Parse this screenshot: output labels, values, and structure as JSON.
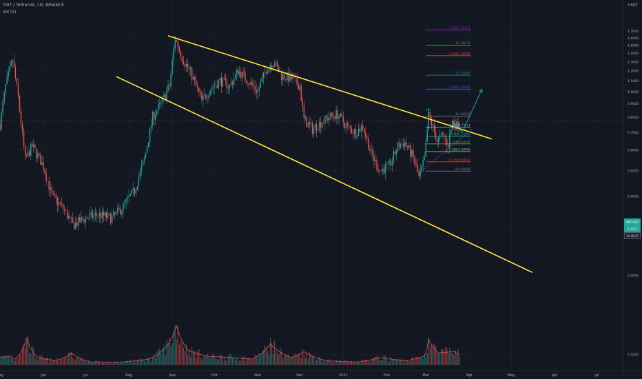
{
  "header": {
    "symbol": "TWT / TetherUS, 1D, BINANCE",
    "indicator": "Vol (5)"
  },
  "price_axis": {
    "currency": "USDT"
  },
  "badges": {
    "symbol_tag": "TWTUSDT",
    "last_price": "0.7712",
    "countdown": "10:48:25"
  },
  "colors": {
    "background": "#131722",
    "up": "#26a69a",
    "down": "#ef5350",
    "channel": "#ffeb3b",
    "forecast": "#26a69a",
    "volume_ma": "#ef5350"
  },
  "chart_data": {
    "type": "candlestick",
    "x_range": [
      "2021-05-01",
      "2022-07-20"
    ],
    "ylim": [
      0.1,
      1.8
    ],
    "y_scale": "log",
    "y_ticks": [
      0.1,
      0.2,
      0.3,
      0.4,
      0.5,
      0.6,
      0.7,
      0.8,
      0.9,
      1.0,
      1.1,
      1.2,
      1.3,
      1.4,
      1.5,
      1.6,
      1.7
    ],
    "y_tick_labels": [
      "0.1000",
      "0.2000",
      "0.3000",
      "0.4000",
      "0.5000",
      "0.6000",
      "0.7000",
      "0.8000",
      "0.9000",
      "1.0000",
      "1.1000",
      "1.2000",
      "1.3000",
      "1.4000",
      "1.5000",
      "1.6000",
      "1.7000"
    ],
    "x_ticks": [
      {
        "date": "2021-05-01",
        "label": "May"
      },
      {
        "date": "2021-06-01",
        "label": "Jun"
      },
      {
        "date": "2021-07-01",
        "label": "Jul"
      },
      {
        "date": "2021-08-01",
        "label": "Aug"
      },
      {
        "date": "2021-09-01",
        "label": "Sep"
      },
      {
        "date": "2021-10-01",
        "label": "Oct"
      },
      {
        "date": "2021-11-01",
        "label": "Nov"
      },
      {
        "date": "2021-12-01",
        "label": "Dec"
      },
      {
        "date": "2022-01-01",
        "label": "2022"
      },
      {
        "date": "2022-02-01",
        "label": "Feb"
      },
      {
        "date": "2022-03-01",
        "label": "Mar"
      },
      {
        "date": "2022-04-01",
        "label": "Apr"
      },
      {
        "date": "2022-05-01",
        "label": "May"
      },
      {
        "date": "2022-06-01",
        "label": "Jun"
      },
      {
        "date": "2022-07-01",
        "label": "Jul"
      }
    ],
    "price_path": [
      [
        "2021-05-01",
        0.75
      ],
      [
        "2021-05-05",
        1.05
      ],
      [
        "2021-05-10",
        1.32
      ],
      [
        "2021-05-14",
        0.95
      ],
      [
        "2021-05-19",
        0.55
      ],
      [
        "2021-05-24",
        0.62
      ],
      [
        "2021-06-01",
        0.52
      ],
      [
        "2021-06-07",
        0.4
      ],
      [
        "2021-06-15",
        0.36
      ],
      [
        "2021-06-22",
        0.31
      ],
      [
        "2021-07-01",
        0.33
      ],
      [
        "2021-07-10",
        0.34
      ],
      [
        "2021-07-20",
        0.33
      ],
      [
        "2021-07-27",
        0.36
      ],
      [
        "2021-08-05",
        0.42
      ],
      [
        "2021-08-12",
        0.55
      ],
      [
        "2021-08-18",
        0.8
      ],
      [
        "2021-08-24",
        0.9
      ],
      [
        "2021-08-30",
        1.05
      ],
      [
        "2021-09-03",
        1.6
      ],
      [
        "2021-09-08",
        1.35
      ],
      [
        "2021-09-15",
        1.15
      ],
      [
        "2021-09-22",
        0.92
      ],
      [
        "2021-09-28",
        1.02
      ],
      [
        "2021-10-05",
        1.1
      ],
      [
        "2021-10-12",
        1.05
      ],
      [
        "2021-10-18",
        1.2
      ],
      [
        "2021-10-25",
        1.1
      ],
      [
        "2021-11-01",
        1.0
      ],
      [
        "2021-11-07",
        1.22
      ],
      [
        "2021-11-12",
        1.3
      ],
      [
        "2021-11-18",
        1.15
      ],
      [
        "2021-11-25",
        1.12
      ],
      [
        "2021-12-01",
        1.05
      ],
      [
        "2021-12-04",
        0.78
      ],
      [
        "2021-12-10",
        0.72
      ],
      [
        "2021-12-16",
        0.76
      ],
      [
        "2021-12-22",
        0.8
      ],
      [
        "2021-12-28",
        0.82
      ],
      [
        "2022-01-04",
        0.73
      ],
      [
        "2022-01-10",
        0.7
      ],
      [
        "2022-01-15",
        0.74
      ],
      [
        "2022-01-21",
        0.58
      ],
      [
        "2022-01-27",
        0.5
      ],
      [
        "2022-02-03",
        0.52
      ],
      [
        "2022-02-09",
        0.62
      ],
      [
        "2022-02-14",
        0.64
      ],
      [
        "2022-02-20",
        0.56
      ],
      [
        "2022-02-24",
        0.47
      ],
      [
        "2022-02-28",
        0.55
      ],
      [
        "2022-03-03",
        0.81
      ],
      [
        "2022-03-06",
        0.73
      ],
      [
        "2022-03-09",
        0.65
      ],
      [
        "2022-03-13",
        0.68
      ],
      [
        "2022-03-17",
        0.63
      ],
      [
        "2022-03-20",
        0.77
      ],
      [
        "2022-03-23",
        0.74
      ],
      [
        "2022-03-25",
        0.7712
      ]
    ],
    "volume_path": [
      [
        "2021-05-01",
        0.05
      ],
      [
        "2021-05-08",
        0.06
      ],
      [
        "2021-05-12",
        0.04
      ],
      [
        "2021-05-20",
        0.18
      ],
      [
        "2021-05-28",
        0.05
      ],
      [
        "2021-06-10",
        0.03
      ],
      [
        "2021-06-21",
        0.08
      ],
      [
        "2021-07-05",
        0.02
      ],
      [
        "2021-07-25",
        0.02
      ],
      [
        "2021-08-15",
        0.04
      ],
      [
        "2021-08-30",
        0.15
      ],
      [
        "2021-09-04",
        0.26
      ],
      [
        "2021-09-12",
        0.1
      ],
      [
        "2021-09-25",
        0.06
      ],
      [
        "2021-10-15",
        0.05
      ],
      [
        "2021-10-28",
        0.04
      ],
      [
        "2021-11-10",
        0.14
      ],
      [
        "2021-11-25",
        0.05
      ],
      [
        "2021-12-04",
        0.09
      ],
      [
        "2021-12-20",
        0.03
      ],
      [
        "2022-01-10",
        0.02
      ],
      [
        "2022-01-27",
        0.05
      ],
      [
        "2022-02-15",
        0.03
      ],
      [
        "2022-02-28",
        0.06
      ],
      [
        "2022-03-03",
        0.17
      ],
      [
        "2022-03-10",
        0.08
      ],
      [
        "2022-03-21",
        0.09
      ],
      [
        "2022-03-25",
        0.07
      ]
    ],
    "channel": {
      "upper": [
        [
          "2021-08-29",
          1.63
        ],
        [
          "2022-04-17",
          0.66
        ]
      ],
      "lower": [
        [
          "2021-07-23",
          1.14
        ],
        [
          "2022-05-16",
          0.205
        ]
      ],
      "color": "#ffeb3b"
    },
    "fib_levels": [
      {
        "label": "0(0.4980)",
        "value": 0.498,
        "color": "#787b86"
      },
      {
        "label": "0.236(0.5401)",
        "value": 0.5401,
        "color": "#f23645"
      },
      {
        "label": "0.382(0.5909)",
        "value": 0.5909,
        "color": "#81c784"
      },
      {
        "label": "0.5(0.6319)",
        "value": 0.6319,
        "color": "#4caf50"
      },
      {
        "label": "0.618(0.6729)",
        "value": 0.6729,
        "color": "#089981"
      },
      {
        "label": "0.786(0.7314)",
        "value": 0.7314,
        "color": "#64b5f6"
      },
      {
        "label": "1(0.8059)",
        "value": 0.8059,
        "color": "#787b86"
      },
      {
        "label": "1.618(1.0209)",
        "value": 1.0209,
        "color": "#2962ff"
      },
      {
        "label": "2(1.1538)",
        "value": 1.1538,
        "color": "#089981"
      },
      {
        "label": "2.618(1.3688)",
        "value": 1.3688,
        "color": "#f23645"
      },
      {
        "label": "3(1.5017)",
        "value": 1.5017,
        "color": "#4caf50"
      },
      {
        "label": "3.618(1.7167)",
        "value": 1.7167,
        "color": "#9c27b0"
      }
    ],
    "fib_range": [
      "2022-03-01",
      "2022-04-02"
    ],
    "markers": [
      {
        "label": "HH",
        "date": "2022-03-03",
        "value": 0.84
      },
      {
        "label": "HL",
        "date": "2022-03-17",
        "value": 0.58
      }
    ],
    "forecast_path": [
      [
        "2022-03-20",
        0.77
      ],
      [
        "2022-03-27",
        0.7
      ],
      [
        "2022-04-10",
        1.02
      ]
    ],
    "dotted_support": [
      [
        "2022-02-26",
        0.5
      ],
      [
        "2022-04-03",
        0.72
      ]
    ],
    "current_price": 0.7712
  }
}
